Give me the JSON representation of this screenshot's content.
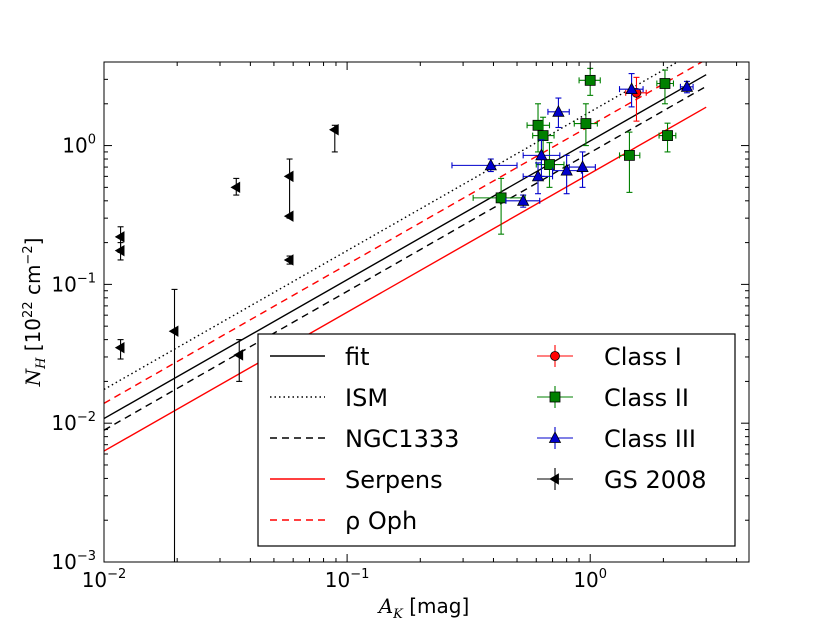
{
  "chart_data": {
    "type": "scatter",
    "title": "",
    "xscale": "log",
    "yscale": "log",
    "xlim": [
      0.01,
      4.5
    ],
    "ylim": [
      0.001,
      4.0
    ],
    "xlabel": {
      "base": "A",
      "sub": "K",
      "unit": "[mag]"
    },
    "ylabel": {
      "base": "N",
      "sub": "H",
      "unit_prefix": "[10",
      "unit_exp": "22",
      "unit_mid": " cm",
      "unit_exp2": "−2",
      "unit_suffix": "]"
    },
    "x_ticks": [
      {
        "value": 0.01,
        "base": "10",
        "exp": "−2"
      },
      {
        "value": 0.1,
        "base": "10",
        "exp": "−1"
      },
      {
        "value": 1,
        "base": "10",
        "exp": "0"
      }
    ],
    "y_ticks": [
      {
        "value": 0.001,
        "base": "10",
        "exp": "−3"
      },
      {
        "value": 0.01,
        "base": "10",
        "exp": "−2"
      },
      {
        "value": 0.1,
        "base": "10",
        "exp": "−1"
      },
      {
        "value": 1,
        "base": "10",
        "exp": "0"
      }
    ],
    "lines": [
      {
        "name": "fit",
        "label": "fit",
        "color": "#000000",
        "dash": "",
        "x0": 0.01,
        "x1": 3.0,
        "y0": 0.0108,
        "y1": 3.24
      },
      {
        "name": "ism",
        "label": "ISM",
        "color": "#000000",
        "dash": "1.5,3",
        "x0": 0.01,
        "x1": 3.0,
        "y0": 0.0175,
        "y1": 5.25
      },
      {
        "name": "ngc1333",
        "label": "NGC1333",
        "color": "#000000",
        "dash": "7,5",
        "x0": 0.01,
        "x1": 3.0,
        "y0": 0.0089,
        "y1": 2.67
      },
      {
        "name": "serpens",
        "label": "Serpens",
        "color": "#ff0000",
        "dash": "",
        "x0": 0.01,
        "x1": 3.0,
        "y0": 0.0063,
        "y1": 1.89
      },
      {
        "name": "rho-oph",
        "label": "ρ Oph",
        "color": "#ff0000",
        "dash": "7,5",
        "x0": 0.01,
        "x1": 3.0,
        "y0": 0.0139,
        "y1": 4.17
      }
    ],
    "series": [
      {
        "name": "class-i",
        "label": "Class I",
        "marker": "circle",
        "color": "#ff0000",
        "points": [
          {
            "x": 1.55,
            "y": 2.4,
            "xlo": 1.4,
            "xhi": 1.7,
            "ylo": 1.5,
            "yhi": 3.1
          }
        ]
      },
      {
        "name": "class-ii",
        "label": "Class II",
        "marker": "square",
        "color": "#008000",
        "points": [
          {
            "x": 0.43,
            "y": 0.42,
            "xlo": 0.33,
            "xhi": 0.54,
            "ylo": 0.23,
            "yhi": 0.58
          },
          {
            "x": 0.61,
            "y": 1.4,
            "xlo": 0.55,
            "xhi": 0.68,
            "ylo": 0.9,
            "yhi": 2.0
          },
          {
            "x": 0.64,
            "y": 1.18,
            "xlo": 0.58,
            "xhi": 0.71,
            "ylo": 0.8,
            "yhi": 1.6
          },
          {
            "x": 0.68,
            "y": 0.73,
            "xlo": 0.6,
            "xhi": 0.78,
            "ylo": 0.5,
            "yhi": 1.05
          },
          {
            "x": 0.96,
            "y": 1.44,
            "xlo": 0.86,
            "xhi": 1.07,
            "ylo": 1.0,
            "yhi": 2.0
          },
          {
            "x": 1.0,
            "y": 2.95,
            "xlo": 0.9,
            "xhi": 1.1,
            "ylo": 2.3,
            "yhi": 3.6
          },
          {
            "x": 1.45,
            "y": 0.85,
            "xlo": 1.32,
            "xhi": 1.6,
            "ylo": 0.46,
            "yhi": 1.25
          },
          {
            "x": 2.03,
            "y": 2.8,
            "xlo": 1.88,
            "xhi": 2.2,
            "ylo": 2.0,
            "yhi": 3.5
          },
          {
            "x": 2.08,
            "y": 1.18,
            "xlo": 1.92,
            "xhi": 2.25,
            "ylo": 0.9,
            "yhi": 1.45
          }
        ]
      },
      {
        "name": "class-iii",
        "label": "Class III",
        "marker": "triangle",
        "color": "#0000cc",
        "points": [
          {
            "x": 0.39,
            "y": 0.72,
            "xlo": 0.27,
            "xhi": 0.5,
            "ylo": 0.65,
            "yhi": 0.8
          },
          {
            "x": 0.53,
            "y": 0.4,
            "xlo": 0.45,
            "xhi": 0.62,
            "ylo": 0.36,
            "yhi": 0.44
          },
          {
            "x": 0.61,
            "y": 0.6,
            "xlo": 0.53,
            "xhi": 0.7,
            "ylo": 0.45,
            "yhi": 0.75
          },
          {
            "x": 0.63,
            "y": 0.85,
            "xlo": 0.53,
            "xhi": 0.75,
            "ylo": 0.6,
            "yhi": 1.1
          },
          {
            "x": 0.74,
            "y": 1.75,
            "xlo": 0.67,
            "xhi": 0.82,
            "ylo": 1.35,
            "yhi": 2.2
          },
          {
            "x": 0.8,
            "y": 0.66,
            "xlo": 0.7,
            "xhi": 0.92,
            "ylo": 0.45,
            "yhi": 0.85
          },
          {
            "x": 0.93,
            "y": 0.7,
            "xlo": 0.82,
            "xhi": 1.05,
            "ylo": 0.5,
            "yhi": 0.9
          },
          {
            "x": 1.48,
            "y": 2.55,
            "xlo": 1.32,
            "xhi": 1.65,
            "ylo": 1.9,
            "yhi": 3.3
          },
          {
            "x": 2.5,
            "y": 2.65,
            "xlo": 2.35,
            "xhi": 2.65,
            "ylo": 2.4,
            "yhi": 2.9
          }
        ]
      },
      {
        "name": "gs-2008",
        "label": "GS 2008",
        "marker": "triangle-left",
        "color": "#000000",
        "points": [
          {
            "x": 0.0117,
            "y": 0.22,
            "ylo": 0.17,
            "yhi": 0.26
          },
          {
            "x": 0.0117,
            "y": 0.175,
            "ylo": 0.15,
            "yhi": 0.2
          },
          {
            "x": 0.0117,
            "y": 0.035,
            "ylo": 0.029,
            "yhi": 0.04
          },
          {
            "x": 0.0195,
            "y": 0.046,
            "ylo": 0.001,
            "yhi": 0.092
          },
          {
            "x": 0.035,
            "y": 0.5,
            "ylo": 0.44,
            "yhi": 0.58
          },
          {
            "x": 0.036,
            "y": 0.031,
            "ylo": 0.02,
            "yhi": 0.04
          },
          {
            "x": 0.058,
            "y": 0.6,
            "ylo": 0.3,
            "yhi": 0.8
          },
          {
            "x": 0.058,
            "y": 0.31
          },
          {
            "x": 0.058,
            "y": 0.15,
            "ylo": 0.14,
            "yhi": 0.16
          },
          {
            "x": 0.089,
            "y": 1.3,
            "ylo": 0.9,
            "yhi": 1.4
          }
        ]
      }
    ],
    "legend": {
      "location": "lower-right",
      "columns": 2
    }
  }
}
